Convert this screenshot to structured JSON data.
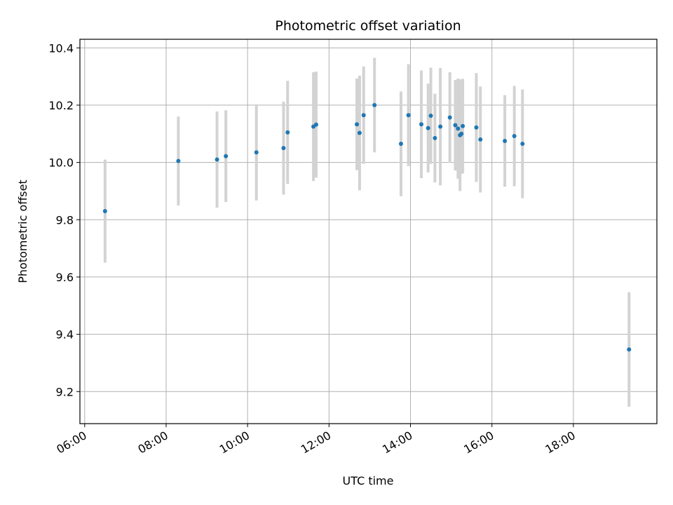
{
  "chart_data": {
    "type": "scatter",
    "title": "Photometric offset variation",
    "xlabel": "UTC time",
    "ylabel": "Photometric offset",
    "grid": true,
    "xlim": [
      "05:53",
      "20:03"
    ],
    "ylim": [
      9.088,
      10.43
    ],
    "x_ticks": [
      "06:00",
      "08:00",
      "10:00",
      "12:00",
      "14:00",
      "16:00",
      "18:00"
    ],
    "y_ticks": [
      "9.2",
      "9.4",
      "9.6",
      "9.8",
      "10.0",
      "10.2",
      "10.4"
    ],
    "marker_color": "#1f77b4",
    "errorbar_color": "#d3d3d3",
    "points": [
      {
        "x": "06:30",
        "y": 9.83,
        "err": 0.18
      },
      {
        "x": "08:18",
        "y": 10.005,
        "err": 0.155
      },
      {
        "x": "09:15",
        "y": 10.01,
        "err": 0.168
      },
      {
        "x": "09:28",
        "y": 10.022,
        "err": 0.16
      },
      {
        "x": "10:13",
        "y": 10.035,
        "err": 0.168
      },
      {
        "x": "10:53",
        "y": 10.05,
        "err": 0.162
      },
      {
        "x": "10:59",
        "y": 10.105,
        "err": 0.18
      },
      {
        "x": "11:37",
        "y": 10.125,
        "err": 0.19
      },
      {
        "x": "11:41",
        "y": 10.132,
        "err": 0.185
      },
      {
        "x": "12:41",
        "y": 10.133,
        "err": 0.16
      },
      {
        "x": "12:45",
        "y": 10.103,
        "err": 0.2
      },
      {
        "x": "12:51",
        "y": 10.165,
        "err": 0.17
      },
      {
        "x": "13:07",
        "y": 10.2,
        "err": 0.165
      },
      {
        "x": "13:46",
        "y": 10.065,
        "err": 0.183
      },
      {
        "x": "13:57",
        "y": 10.165,
        "err": 0.178
      },
      {
        "x": "14:16",
        "y": 10.133,
        "err": 0.188
      },
      {
        "x": "14:26",
        "y": 10.12,
        "err": 0.155
      },
      {
        "x": "14:30",
        "y": 10.163,
        "err": 0.168
      },
      {
        "x": "14:36",
        "y": 10.085,
        "err": 0.155
      },
      {
        "x": "14:44",
        "y": 10.125,
        "err": 0.205
      },
      {
        "x": "14:58",
        "y": 10.157,
        "err": 0.158
      },
      {
        "x": "15:06",
        "y": 10.13,
        "err": 0.158
      },
      {
        "x": "15:10",
        "y": 10.118,
        "err": 0.175
      },
      {
        "x": "15:13",
        "y": 10.095,
        "err": 0.195
      },
      {
        "x": "15:15",
        "y": 10.1,
        "err": 0.14
      },
      {
        "x": "15:17",
        "y": 10.127,
        "err": 0.165
      },
      {
        "x": "15:37",
        "y": 10.122,
        "err": 0.19
      },
      {
        "x": "15:43",
        "y": 10.08,
        "err": 0.185
      },
      {
        "x": "16:19",
        "y": 10.075,
        "err": 0.16
      },
      {
        "x": "16:33",
        "y": 10.092,
        "err": 0.175
      },
      {
        "x": "16:45",
        "y": 10.065,
        "err": 0.19
      },
      {
        "x": "19:22",
        "y": 9.347,
        "err": 0.2
      }
    ]
  }
}
